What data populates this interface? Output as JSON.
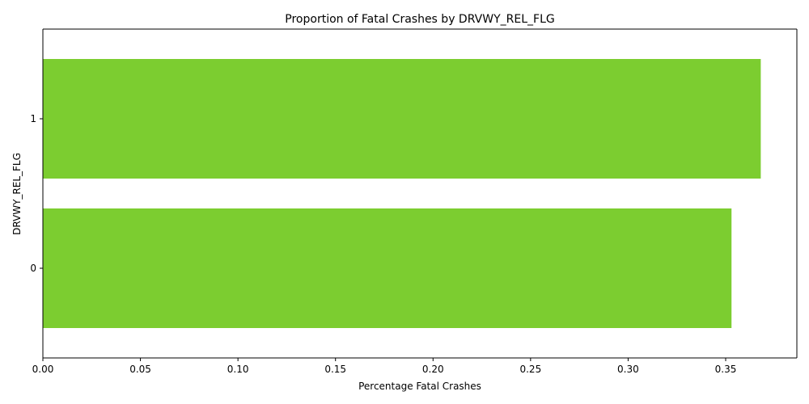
{
  "chart_data": {
    "type": "bar",
    "orientation": "horizontal",
    "title": "Proportion of Fatal Crashes by DRVWY_REL_FLG",
    "xlabel": "Percentage Fatal Crashes",
    "ylabel": "DRVWY_REL_FLG",
    "categories": [
      "0",
      "1"
    ],
    "values": [
      0.353,
      0.368
    ],
    "xlim": [
      0,
      0.3865
    ],
    "xticks": [
      "0.00",
      "0.05",
      "0.10",
      "0.15",
      "0.20",
      "0.25",
      "0.30",
      "0.35"
    ],
    "bar_color": "#7ccd30",
    "grid": false,
    "legend": "none"
  }
}
